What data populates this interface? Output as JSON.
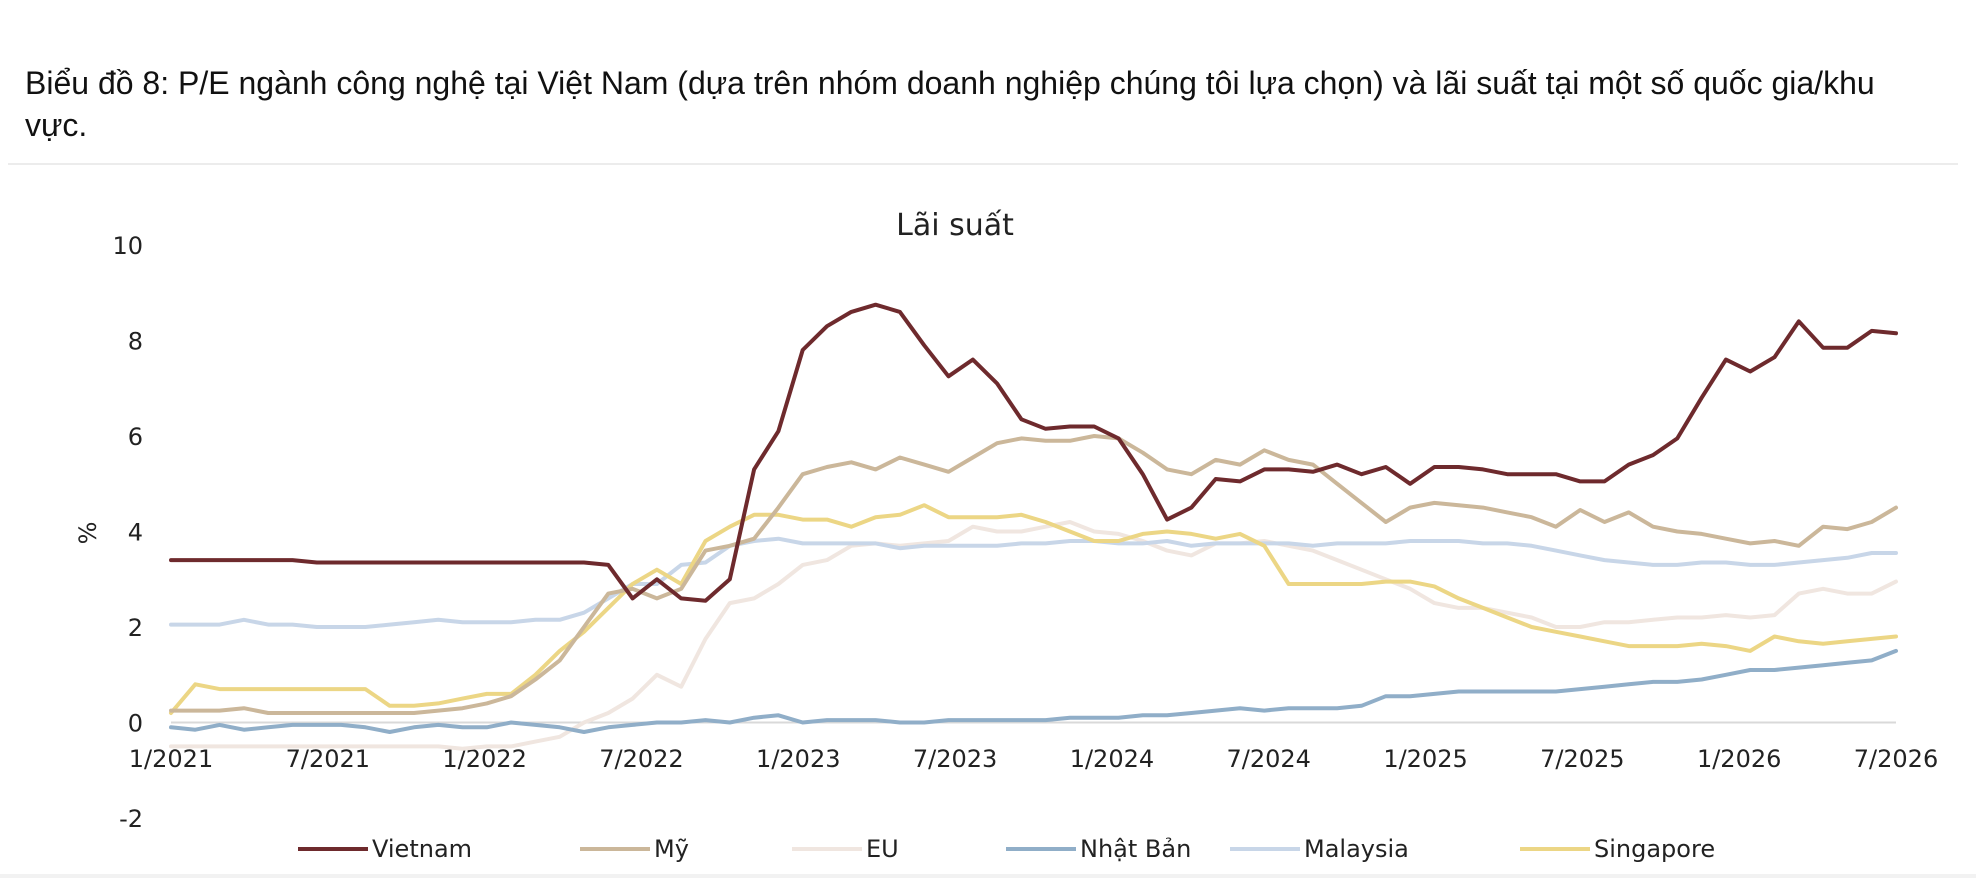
{
  "caption": "Biểu đồ 8: P/E ngành công nghệ tại Việt Nam (dựa trên nhóm doanh nghiệp chúng tôi lựa chọn) và lãi suất tại một số quốc gia/khu vực.",
  "chart_data": {
    "type": "line",
    "title": "Lãi suất",
    "ylabel": "%",
    "xlabel": "",
    "ylim": [
      -2,
      10
    ],
    "yticks": [
      10,
      8,
      6,
      4,
      2,
      0,
      -2
    ],
    "xticks": [
      "1/2021",
      "7/2021",
      "1/2022",
      "7/2022",
      "1/2023",
      "7/2023",
      "1/2024",
      "7/2024",
      "1/2025",
      "7/2025",
      "1/2026",
      "7/2026"
    ],
    "x_start": "1/2021",
    "x_end": "7/2026",
    "legend_position": "bottom",
    "series": [
      {
        "name": "Vietnam",
        "color": "#6e2a2d",
        "values": [
          3.4,
          3.4,
          3.4,
          3.4,
          3.4,
          3.4,
          3.35,
          3.35,
          3.35,
          3.35,
          3.35,
          3.35,
          3.35,
          3.35,
          3.35,
          3.35,
          3.35,
          3.35,
          3.3,
          2.6,
          3.0,
          2.6,
          2.55,
          3.0,
          5.3,
          6.1,
          7.8,
          8.3,
          8.6,
          8.75,
          8.6,
          7.9,
          7.25,
          7.6,
          7.1,
          6.35,
          6.15,
          6.2,
          6.2,
          5.95,
          5.2,
          4.25,
          4.5,
          5.1,
          5.05,
          5.3,
          5.3,
          5.25,
          5.4,
          5.2,
          5.35,
          5.0,
          5.35,
          5.35,
          5.3,
          5.2,
          5.2,
          5.2,
          5.05,
          5.05,
          5.4,
          5.6,
          5.95,
          6.8,
          7.6,
          7.35,
          7.65,
          8.4,
          7.85,
          7.85,
          8.2,
          8.15
        ]
      },
      {
        "name": "Mỹ",
        "color": "#cbb79a",
        "values": [
          0.25,
          0.25,
          0.25,
          0.3,
          0.2,
          0.2,
          0.2,
          0.2,
          0.2,
          0.2,
          0.2,
          0.25,
          0.3,
          0.4,
          0.55,
          0.9,
          1.3,
          2.0,
          2.7,
          2.8,
          2.6,
          2.8,
          3.6,
          3.7,
          3.85,
          4.5,
          5.2,
          5.35,
          5.45,
          5.3,
          5.55,
          5.4,
          5.25,
          5.55,
          5.85,
          5.95,
          5.9,
          5.9,
          6.0,
          5.95,
          5.65,
          5.3,
          5.2,
          5.5,
          5.4,
          5.7,
          5.5,
          5.4,
          5.0,
          4.6,
          4.2,
          4.5,
          4.6,
          4.55,
          4.5,
          4.4,
          4.3,
          4.1,
          4.45,
          4.2,
          4.4,
          4.1,
          4.0,
          3.95,
          3.85,
          3.75,
          3.8,
          3.7,
          4.1,
          4.05,
          4.2,
          4.5
        ]
      },
      {
        "name": "EU",
        "color": "#f0e6e0",
        "values": [
          -0.5,
          -0.5,
          -0.5,
          -0.5,
          -0.5,
          -0.5,
          -0.5,
          -0.5,
          -0.5,
          -0.5,
          -0.5,
          -0.5,
          -0.55,
          -0.5,
          -0.5,
          -0.4,
          -0.3,
          0.0,
          0.2,
          0.5,
          1.0,
          0.75,
          1.75,
          2.5,
          2.6,
          2.9,
          3.3,
          3.4,
          3.7,
          3.75,
          3.7,
          3.75,
          3.8,
          4.1,
          4.0,
          4.0,
          4.1,
          4.2,
          4.0,
          3.95,
          3.8,
          3.6,
          3.5,
          3.75,
          3.75,
          3.8,
          3.7,
          3.6,
          3.4,
          3.2,
          3.0,
          2.8,
          2.5,
          2.4,
          2.4,
          2.3,
          2.2,
          2.0,
          2.0,
          2.1,
          2.1,
          2.15,
          2.2,
          2.2,
          2.25,
          2.2,
          2.25,
          2.7,
          2.8,
          2.7,
          2.7,
          2.95
        ]
      },
      {
        "name": "Nhật Bản",
        "color": "#90aec8",
        "values": [
          -0.1,
          -0.15,
          -0.05,
          -0.15,
          -0.1,
          -0.05,
          -0.05,
          -0.05,
          -0.1,
          -0.2,
          -0.1,
          -0.05,
          -0.1,
          -0.1,
          0.0,
          -0.05,
          -0.1,
          -0.2,
          -0.1,
          -0.05,
          0.0,
          0.0,
          0.05,
          0.0,
          0.1,
          0.15,
          0.0,
          0.05,
          0.05,
          0.05,
          0.0,
          0.0,
          0.05,
          0.05,
          0.05,
          0.05,
          0.05,
          0.1,
          0.1,
          0.1,
          0.15,
          0.15,
          0.2,
          0.25,
          0.3,
          0.25,
          0.3,
          0.3,
          0.3,
          0.35,
          0.55,
          0.55,
          0.6,
          0.65,
          0.65,
          0.65,
          0.65,
          0.65,
          0.7,
          0.75,
          0.8,
          0.85,
          0.85,
          0.9,
          1.0,
          1.1,
          1.1,
          1.15,
          1.2,
          1.25,
          1.3,
          1.5
        ]
      },
      {
        "name": "Malaysia",
        "color": "#c8d6e8",
        "values": [
          2.05,
          2.05,
          2.05,
          2.15,
          2.05,
          2.05,
          2.0,
          2.0,
          2.0,
          2.05,
          2.1,
          2.15,
          2.1,
          2.1,
          2.1,
          2.15,
          2.15,
          2.3,
          2.6,
          2.9,
          2.9,
          3.3,
          3.35,
          3.7,
          3.8,
          3.85,
          3.75,
          3.75,
          3.75,
          3.75,
          3.65,
          3.7,
          3.7,
          3.7,
          3.7,
          3.75,
          3.75,
          3.8,
          3.8,
          3.75,
          3.75,
          3.8,
          3.7,
          3.75,
          3.75,
          3.75,
          3.75,
          3.7,
          3.75,
          3.75,
          3.75,
          3.8,
          3.8,
          3.8,
          3.75,
          3.75,
          3.7,
          3.6,
          3.5,
          3.4,
          3.35,
          3.3,
          3.3,
          3.35,
          3.35,
          3.3,
          3.3,
          3.35,
          3.4,
          3.45,
          3.55,
          3.55
        ]
      },
      {
        "name": "Singapore",
        "color": "#ecd685",
        "values": [
          0.2,
          0.8,
          0.7,
          0.7,
          0.7,
          0.7,
          0.7,
          0.7,
          0.7,
          0.35,
          0.35,
          0.4,
          0.5,
          0.6,
          0.6,
          1.0,
          1.5,
          1.9,
          2.4,
          2.9,
          3.2,
          2.9,
          3.8,
          4.1,
          4.35,
          4.35,
          4.25,
          4.25,
          4.1,
          4.3,
          4.35,
          4.55,
          4.3,
          4.3,
          4.3,
          4.35,
          4.2,
          4.0,
          3.8,
          3.8,
          3.95,
          4.0,
          3.95,
          3.85,
          3.95,
          3.7,
          2.9,
          2.9,
          2.9,
          2.9,
          2.95,
          2.95,
          2.85,
          2.6,
          2.4,
          2.2,
          2.0,
          1.9,
          1.8,
          1.7,
          1.6,
          1.6,
          1.6,
          1.65,
          1.6,
          1.5,
          1.8,
          1.7,
          1.65,
          1.7,
          1.75,
          1.8
        ]
      }
    ]
  }
}
